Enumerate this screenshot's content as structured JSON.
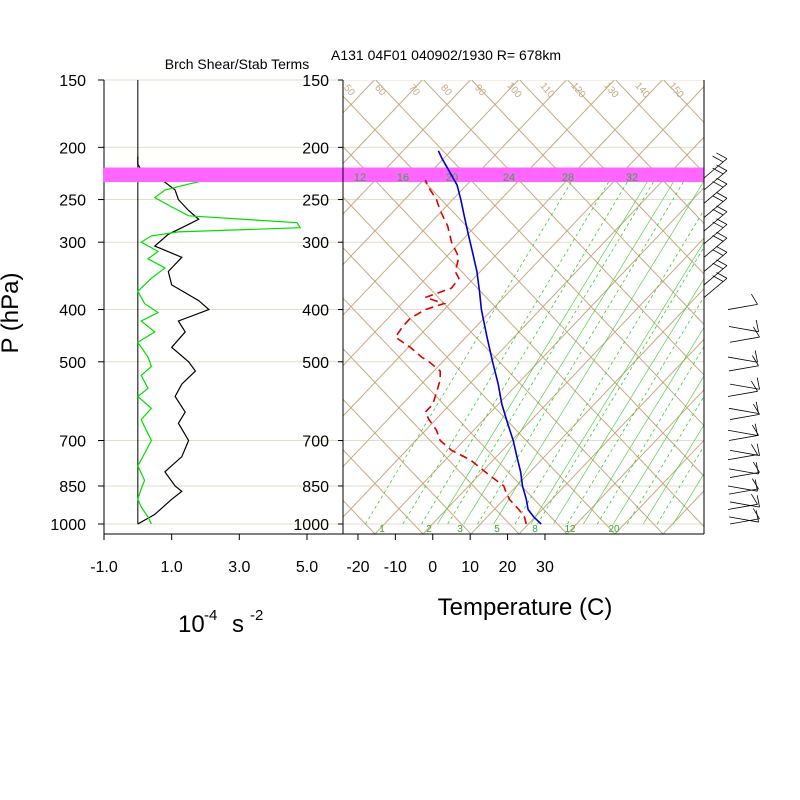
{
  "chart_data": [
    {
      "type": "line",
      "title": "Brch Shear/Stab Terms",
      "xlabel_base": "10",
      "xlabel_exp1": "-4",
      "xlabel_unit": "s",
      "xlabel_exp2": "-2",
      "ylabel": "P (hPa)",
      "xlim": [
        -1.0,
        5.8
      ],
      "xticks": [
        -1.0,
        1.0,
        3.0,
        5.0
      ],
      "xtick_labels": [
        "-1.0",
        "1.0",
        "3.0",
        "5.0"
      ],
      "pressure_levels": [
        150,
        200,
        250,
        300,
        400,
        500,
        700,
        850,
        1000
      ],
      "pressure_labels": [
        "150",
        "200",
        "250",
        "300",
        "400",
        "500",
        "700",
        "850",
        "1000"
      ],
      "colors": {
        "series1": "#000000",
        "series2": "#00dd00",
        "axis": "#000000"
      },
      "series": [
        {
          "color": "#000000",
          "points": [
            [
              1000,
              0.0
            ],
            [
              960,
              0.5
            ],
            [
              900,
              1.0
            ],
            [
              870,
              1.3
            ],
            [
              850,
              1.1
            ],
            [
              800,
              0.8
            ],
            [
              750,
              1.3
            ],
            [
              700,
              1.5
            ],
            [
              650,
              1.2
            ],
            [
              620,
              1.4
            ],
            [
              580,
              1.1
            ],
            [
              550,
              1.3
            ],
            [
              520,
              1.7
            ],
            [
              500,
              1.5
            ],
            [
              470,
              1.0
            ],
            [
              440,
              1.4
            ],
            [
              420,
              1.2
            ],
            [
              400,
              2.1
            ],
            [
              385,
              1.8
            ],
            [
              360,
              1.0
            ],
            [
              340,
              0.9
            ],
            [
              320,
              1.3
            ],
            [
              305,
              0.5
            ],
            [
              290,
              0.9
            ],
            [
              280,
              1.4
            ],
            [
              272,
              1.8
            ],
            [
              262,
              1.5
            ],
            [
              250,
              1.2
            ],
            [
              240,
              1.1
            ],
            [
              232,
              0.8
            ],
            [
              225,
              0.2
            ],
            [
              215,
              0.0
            ],
            [
              208,
              0.0
            ]
          ]
        },
        {
          "color": "#00dd00",
          "points": [
            [
              1000,
              0.4
            ],
            [
              970,
              0.3
            ],
            [
              930,
              0.1
            ],
            [
              900,
              0.0
            ],
            [
              860,
              0.1
            ],
            [
              830,
              0.2
            ],
            [
              780,
              0.0
            ],
            [
              740,
              0.2
            ],
            [
              700,
              0.4
            ],
            [
              660,
              0.2
            ],
            [
              640,
              0.1
            ],
            [
              610,
              0.4
            ],
            [
              580,
              0.0
            ],
            [
              560,
              0.3
            ],
            [
              530,
              0.1
            ],
            [
              510,
              0.4
            ],
            [
              490,
              0.3
            ],
            [
              460,
              0.0
            ],
            [
              440,
              0.5
            ],
            [
              420,
              0.1
            ],
            [
              405,
              0.6
            ],
            [
              390,
              0.2
            ],
            [
              370,
              0.0
            ],
            [
              350,
              0.4
            ],
            [
              335,
              0.8
            ],
            [
              322,
              0.3
            ],
            [
              312,
              0.6
            ],
            [
              300,
              0.1
            ],
            [
              292,
              0.4
            ],
            [
              287,
              1.2
            ],
            [
              282,
              4.8
            ],
            [
              276,
              4.7
            ],
            [
              268,
              1.5
            ],
            [
              258,
              1.0
            ],
            [
              248,
              0.5
            ],
            [
              240,
              0.8
            ],
            [
              234,
              1.5
            ],
            [
              231,
              1.9
            ],
            [
              229,
              1.4
            ]
          ]
        }
      ]
    },
    {
      "type": "line",
      "title": "A131 04F01 040902/1930 R= 678km",
      "xlabel": "Temperature (C)",
      "xlim": [
        -24,
        43
      ],
      "xticks": [
        -20,
        -10,
        0,
        10,
        20,
        30
      ],
      "xtick_labels": [
        "-20",
        "-10",
        "0",
        "10",
        "20",
        "30"
      ],
      "pressure_levels": [
        150,
        200,
        250,
        300,
        400,
        500,
        700,
        850,
        1000
      ],
      "pressure_labels": [
        "150",
        "200",
        "250",
        "300",
        "400",
        "500",
        "700",
        "850",
        "1000"
      ],
      "mixing_ratio_labels": [
        "1",
        "2",
        "3",
        "5",
        "8",
        "12",
        "20"
      ],
      "upper_labels": [
        "12",
        "16",
        "20",
        "24",
        "28",
        "32"
      ],
      "theta_labels": [
        "50",
        "60",
        "70",
        "80",
        "90",
        "100",
        "110",
        "120",
        "130",
        "140",
        "150"
      ],
      "highlight_band_hpa": [
        218,
        232
      ],
      "colors": {
        "temperature": "#0000cc",
        "dewpoint": "#dd0000",
        "isotherm": "#c8a882",
        "mixing_ratio": "#33cc33",
        "band": "#ff66ff"
      },
      "series": [
        {
          "name": "temperature",
          "color": "#0000cc",
          "style": "solid",
          "points": [
            [
              1000,
              29.0
            ],
            [
              970,
              27.0
            ],
            [
              940,
              25.5
            ],
            [
              900,
              25.0
            ],
            [
              850,
              24.0
            ],
            [
              800,
              23.5
            ],
            [
              750,
              22.5
            ],
            [
              700,
              21.5
            ],
            [
              650,
              20.0
            ],
            [
              600,
              18.5
            ],
            [
              550,
              17.5
            ],
            [
              500,
              16.0
            ],
            [
              450,
              14.5
            ],
            [
              400,
              13.0
            ],
            [
              370,
              12.5
            ],
            [
              340,
              11.8
            ],
            [
              310,
              10.5
            ],
            [
              290,
              9.5
            ],
            [
              270,
              8.5
            ],
            [
              250,
              7.5
            ],
            [
              235,
              6.5
            ],
            [
              222,
              4.5
            ],
            [
              210,
              2.5
            ],
            [
              203,
              1.5
            ]
          ]
        },
        {
          "name": "dewpoint",
          "color": "#dd0000",
          "style": "dashed",
          "points": [
            [
              1000,
              25.0
            ],
            [
              970,
              24.5
            ],
            [
              940,
              23.0
            ],
            [
              900,
              20.5
            ],
            [
              870,
              19.5
            ],
            [
              850,
              19.0
            ],
            [
              820,
              16.0
            ],
            [
              800,
              14.0
            ],
            [
              760,
              10.0
            ],
            [
              730,
              5.0
            ],
            [
              700,
              2.0
            ],
            [
              670,
              1.0
            ],
            [
              640,
              -1.0
            ],
            [
              620,
              -2.0
            ],
            [
              600,
              0.0
            ],
            [
              570,
              1.0
            ],
            [
              540,
              2.0
            ],
            [
              520,
              2.0
            ],
            [
              500,
              -1.0
            ],
            [
              490,
              -3.0
            ],
            [
              470,
              -6.0
            ],
            [
              450,
              -10.0
            ],
            [
              430,
              -8.0
            ],
            [
              415,
              -6.0
            ],
            [
              400,
              -2.0
            ],
            [
              390,
              3.0
            ],
            [
              380,
              -2.0
            ],
            [
              365,
              5.0
            ],
            [
              350,
              7.0
            ],
            [
              340,
              6.0
            ],
            [
              320,
              7.0
            ],
            [
              300,
              5.0
            ],
            [
              280,
              4.0
            ],
            [
              262,
              2.0
            ],
            [
              250,
              1.0
            ],
            [
              238,
              -1.0
            ],
            [
              230,
              -2.0
            ]
          ]
        }
      ],
      "wind_barbs_upper_hpa": [
        228,
        240,
        254,
        270,
        286,
        302,
        320,
        340,
        360,
        380
      ],
      "wind_barbs_lower_hpa": [
        400,
        430,
        460,
        490,
        520,
        550,
        580,
        610,
        640,
        670,
        700,
        730,
        760,
        790,
        820,
        850,
        880,
        910,
        940,
        970,
        1000
      ]
    }
  ]
}
